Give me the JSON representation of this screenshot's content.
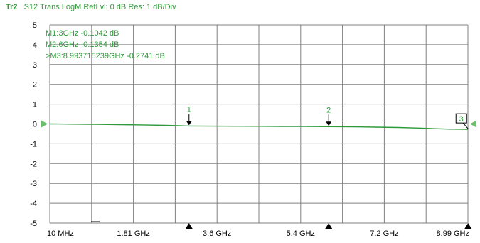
{
  "header": {
    "trace_id": "Tr2",
    "trace_desc": "S12 Trans LogM RefLvl: 0  dB Res: 1  dB/Div"
  },
  "chart_data": {
    "type": "line",
    "ylim": [
      -5,
      5
    ],
    "y_ticks": [
      5,
      4,
      3,
      2,
      1,
      0,
      -1,
      -2,
      -3,
      -4,
      -5
    ],
    "x_unit": "GHz",
    "xlim": [
      0.01,
      8.99
    ],
    "x_tick_labels": [
      "10 MHz",
      "1.81 GHz",
      "3.6 GHz",
      "5.4 GHz",
      "7.2 GHz",
      "8.99 GHz"
    ],
    "x_grid_divisions": 10,
    "grid": true,
    "reference_level": 0,
    "colors": {
      "trace": "#2f9a3a",
      "grid": "#808080",
      "marker": "#000000"
    },
    "series": [
      {
        "x": [
          0.01,
          0.2,
          0.5,
          1.0,
          1.5,
          2.0,
          2.5,
          3.0,
          3.5,
          4.0,
          4.5,
          5.0,
          5.5,
          6.0,
          6.5,
          7.0,
          7.5,
          8.0,
          8.3,
          8.6,
          8.99
        ],
        "values": [
          0.0,
          -0.005,
          -0.01,
          -0.02,
          -0.035,
          -0.05,
          -0.07,
          -0.1042,
          -0.11,
          -0.115,
          -0.12,
          -0.125,
          -0.13,
          -0.1354,
          -0.145,
          -0.16,
          -0.18,
          -0.21,
          -0.24,
          -0.262,
          -0.2741
        ]
      }
    ],
    "markers": [
      {
        "id": "1",
        "x": 3.0,
        "y": -0.1042
      },
      {
        "id": "2",
        "x": 6.0,
        "y": -0.1354
      },
      {
        "id": "3",
        "x": 8.993715239,
        "y": -0.2741
      }
    ],
    "marker_readouts": [
      "M1:3GHz  -0.1042  dB",
      "M2:6GHz  -0.1354  dB",
      ">M3:8.993715239GHz  -0.2741  dB"
    ]
  }
}
